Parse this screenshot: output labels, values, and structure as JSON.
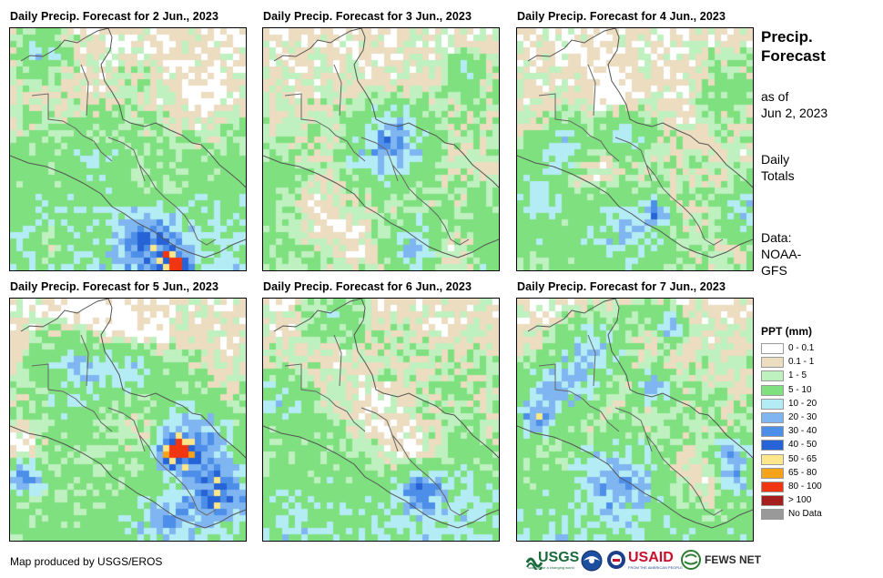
{
  "panels": [
    {
      "title": "Daily Precip. Forecast for 2 Jun., 2023",
      "seed": 2,
      "wet": 0.55
    },
    {
      "title": "Daily Precip. Forecast for 3 Jun., 2023",
      "seed": 3,
      "wet": 0.25
    },
    {
      "title": "Daily Precip. Forecast for 4 Jun., 2023",
      "seed": 4,
      "wet": 0.2
    },
    {
      "title": "Daily Precip. Forecast for 5 Jun., 2023",
      "seed": 5,
      "wet": 0.35
    },
    {
      "title": "Daily Precip. Forecast for 6 Jun., 2023",
      "seed": 6,
      "wet": 0.5
    },
    {
      "title": "Daily Precip. Forecast for 7 Jun., 2023",
      "seed": 7,
      "wet": 0.45
    }
  ],
  "side": {
    "title_line1": "Precip.",
    "title_line2": "Forecast",
    "asof_line1": "as of",
    "asof_line2": "Jun 2, 2023",
    "daily_line1": "Daily",
    "daily_line2": "Totals",
    "data_line1": "Data:",
    "data_line2": "NOAA-",
    "data_line3": "GFS"
  },
  "legend": {
    "title": "PPT (mm)",
    "items": [
      {
        "label": "0 - 0.1",
        "color": "#ffffff"
      },
      {
        "label": "0.1 - 1",
        "color": "#ecdcc0"
      },
      {
        "label": "1 - 5",
        "color": "#bff0bf"
      },
      {
        "label": "5 - 10",
        "color": "#7ee07e"
      },
      {
        "label": "10 - 20",
        "color": "#b4ecf5"
      },
      {
        "label": "20 - 30",
        "color": "#7fb5f0"
      },
      {
        "label": "30 - 40",
        "color": "#4d8ee8"
      },
      {
        "label": "40 - 50",
        "color": "#2563d6"
      },
      {
        "label": "50 - 65",
        "color": "#fde78a"
      },
      {
        "label": "65 - 80",
        "color": "#f7a21b"
      },
      {
        "label": "80 - 100",
        "color": "#f03510"
      },
      {
        "label": "> 100",
        "color": "#a51e1e"
      },
      {
        "label": "No Data",
        "color": "#999999"
      }
    ]
  },
  "credit": "Map produced by USGS/EROS",
  "logos": {
    "usgs": "USGS",
    "usgs_tagline": "science for a changing world",
    "noaa": "NOAA",
    "usaid": "USAID",
    "usaid_tagline": "FROM THE AMERICAN PEOPLE",
    "fewsnet": "FEWS NET"
  }
}
